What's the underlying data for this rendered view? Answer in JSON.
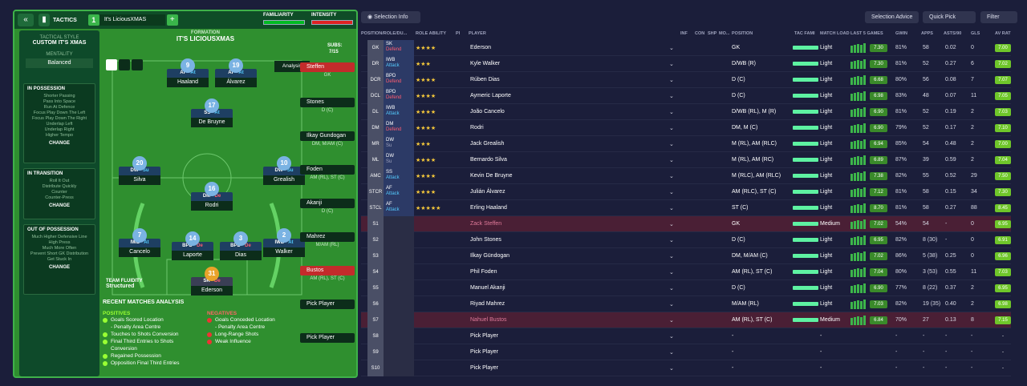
{
  "left": {
    "tactics_label": "TACTICS",
    "slot": "1",
    "tactic_name": "It's LiciousXMAS",
    "familiarity": "FAMILIARITY",
    "intensity": "INTENSITY",
    "tactical_style_h": "TACTICAL STYLE",
    "tactical_style": "CUSTOM IT'S XMAS",
    "mentality_h": "MENTALITY",
    "mentality": "Balanced",
    "in_possession_h": "IN POSSESSION",
    "in_possession": [
      "Shorter Passing",
      "Pass Into Space",
      "Run At Defence",
      "Focus Play Down The Left",
      "Focus Play Down The Right",
      "Underlap Left",
      "Underlap Right",
      "Higher Tempo"
    ],
    "in_transition_h": "IN TRANSITION",
    "in_transition": [
      "Roll It Out",
      "Distribute Quickly",
      "Counter",
      "Counter-Press"
    ],
    "out_possession_h": "OUT OF POSSESSION",
    "out_possession": [
      "Much Higher Defensive Line",
      "High Press",
      "Much More Often",
      "Prevent Short GK Distribution",
      "Get Stuck In"
    ],
    "change": "CHANGE",
    "formation_h": "FORMATION",
    "formation": "IT'S LICIOUSXMAS",
    "subs_h": "SUBS:",
    "subs_count": "7/15",
    "analysis": "Analysis",
    "team_fluidity_h": "TEAM FLUIDITY",
    "team_fluidity": "Structured",
    "players": [
      {
        "num": "9",
        "role": "AF",
        "duty": "At",
        "name": "Haaland"
      },
      {
        "num": "19",
        "role": "AF",
        "duty": "At",
        "name": "Álvarez"
      },
      {
        "num": "17",
        "role": "SS",
        "duty": "At",
        "name": "De Bruyne"
      },
      {
        "num": "20",
        "role": "DW",
        "duty": "Su",
        "name": "Silva"
      },
      {
        "num": "10",
        "role": "DW",
        "duty": "Su",
        "name": "Grealish"
      },
      {
        "num": "16",
        "role": "DM",
        "duty": "De",
        "name": "Rodri"
      },
      {
        "num": "7",
        "role": "IWB",
        "duty": "At",
        "name": "Cancelo"
      },
      {
        "num": "14",
        "role": "BPD",
        "duty": "De",
        "name": "Laporte"
      },
      {
        "num": "3",
        "role": "BPD",
        "duty": "De",
        "name": "Dias"
      },
      {
        "num": "2",
        "role": "IWB",
        "duty": "At",
        "name": "Walker"
      },
      {
        "num": "31",
        "role": "SK",
        "duty": "De",
        "name": "Ederson"
      }
    ],
    "subs": [
      {
        "name": "Steffen",
        "pos": "GK",
        "red": true
      },
      {
        "name": "Stones",
        "pos": "D (C)",
        "red": false
      },
      {
        "name": "Ilkay Gundogan",
        "pos": "DM, M/AM (C)",
        "red": false
      },
      {
        "name": "Foden",
        "pos": "AM (RL), ST (C)",
        "red": false
      },
      {
        "name": "Akanji",
        "pos": "D (C)",
        "red": false
      },
      {
        "name": "Mahrez",
        "pos": "M/AM (RL)",
        "red": false
      },
      {
        "name": "Bustos",
        "pos": "AM (RL), ST (C)",
        "red": true
      },
      {
        "name": "Pick Player",
        "pos": "",
        "red": false
      },
      {
        "name": "Pick Player",
        "pos": "",
        "red": false
      }
    ],
    "recent_h": "RECENT MATCHES ANALYSIS",
    "positives_h": "POSITIVES",
    "positives": [
      "Goals Scored Location",
      "- Penalty Area Centre",
      "Touches to Shots Conversion",
      "Final Third Entries to Shots Conversion",
      "Regained Possession",
      "Opposition Final Third Entries"
    ],
    "negatives_h": "NEGATIVES",
    "negatives": [
      "Goals Conceded Location",
      "- Penalty Area Centre",
      "Long-Range Shots",
      "Weak Influence"
    ]
  },
  "right": {
    "selection_info": "Selection Info",
    "selection_advice": "Selection Advice",
    "quick_pick": "Quick Pick",
    "filter": "Filter",
    "headers": [
      "POSITION/ROLE/DU...",
      "ROLE ABILITY",
      "PI",
      "PLAYER",
      "INF",
      "CON",
      "SHP",
      "MO...",
      "POSITION",
      "TAC FAMI",
      "MATCH LOAD",
      "LAST 5 GAMES",
      "GWIN",
      "APPS",
      "ASTS/90",
      "GLS",
      "AV RAT"
    ],
    "rows": [
      {
        "pos": "GK",
        "role": "SK",
        "duty": "Defend",
        "stars": "★★★★",
        "player": "Ederson",
        "position": "GK",
        "load": "Light",
        "rating": "7.30",
        "gwin": "81%",
        "apps": "58",
        "asts": "0.02",
        "gls": "0",
        "avr": "7.00"
      },
      {
        "pos": "DR",
        "role": "IWB",
        "duty": "Attack",
        "stars": "★★★",
        "player": "Kyle Walker",
        "position": "D/WB (R)",
        "load": "Light",
        "rating": "7.30",
        "gwin": "81%",
        "apps": "52",
        "asts": "0.27",
        "gls": "6",
        "avr": "7.02"
      },
      {
        "pos": "DCR",
        "role": "BPD",
        "duty": "Defend",
        "stars": "★★★★",
        "player": "Rúben Dias",
        "position": "D (C)",
        "load": "Light",
        "rating": "6.68",
        "gwin": "80%",
        "apps": "56",
        "asts": "0.08",
        "gls": "7",
        "avr": "7.07"
      },
      {
        "pos": "DCL",
        "role": "BPD",
        "duty": "Defend",
        "stars": "★★★★",
        "player": "Aymeric Laporte",
        "position": "D (C)",
        "load": "Light",
        "rating": "6.98",
        "gwin": "83%",
        "apps": "48",
        "asts": "0.07",
        "gls": "11",
        "avr": "7.05"
      },
      {
        "pos": "DL",
        "role": "IWB",
        "duty": "Attack",
        "stars": "★★★★",
        "player": "João Cancelo",
        "position": "D/WB (RL), M (R)",
        "load": "Light",
        "rating": "6.90",
        "gwin": "81%",
        "apps": "52",
        "asts": "0.19",
        "gls": "2",
        "avr": "7.03"
      },
      {
        "pos": "DM",
        "role": "DM",
        "duty": "Defend",
        "stars": "★★★★",
        "player": "Rodri",
        "position": "DM, M (C)",
        "load": "Light",
        "rating": "6.90",
        "gwin": "79%",
        "apps": "52",
        "asts": "0.17",
        "gls": "2",
        "avr": "7.10"
      },
      {
        "pos": "MR",
        "role": "DW",
        "duty": "Su",
        "stars": "★★★",
        "player": "Jack Grealish",
        "position": "M (RL), AM (RLC)",
        "load": "Light",
        "rating": "6.94",
        "gwin": "85%",
        "apps": "54",
        "asts": "0.48",
        "gls": "2",
        "avr": "7.00"
      },
      {
        "pos": "ML",
        "role": "DW",
        "duty": "Su",
        "stars": "★★★★",
        "player": "Bernardo Silva",
        "position": "M (RL), AM (RC)",
        "load": "Light",
        "rating": "6.89",
        "gwin": "87%",
        "apps": "39",
        "asts": "0.59",
        "gls": "2",
        "avr": "7.04"
      },
      {
        "pos": "AMC",
        "role": "SS",
        "duty": "Attack",
        "stars": "★★★★",
        "player": "Kevin De Bruyne",
        "position": "M (RLC), AM (RLC)",
        "load": "Light",
        "rating": "7.38",
        "gwin": "82%",
        "apps": "55",
        "asts": "0.52",
        "gls": "29",
        "avr": "7.50"
      },
      {
        "pos": "STCR",
        "role": "AF",
        "duty": "Attack",
        "stars": "★★★★",
        "player": "Julián Álvarez",
        "position": "AM (RLC), ST (C)",
        "load": "Light",
        "rating": "7.12",
        "gwin": "81%",
        "apps": "58",
        "asts": "0.15",
        "gls": "34",
        "avr": "7.30"
      },
      {
        "pos": "STCL",
        "role": "AF",
        "duty": "Attack",
        "stars": "★★★★★",
        "player": "Erling Haaland",
        "position": "ST (C)",
        "load": "Light",
        "rating": "8.70",
        "gwin": "81%",
        "apps": "58",
        "asts": "0.27",
        "gls": "88",
        "avr": "8.45"
      },
      {
        "pos": "S1",
        "role": "",
        "duty": "",
        "stars": "",
        "player": "Zack Steffen",
        "position": "GK",
        "load": "Medium",
        "rating": "7.02",
        "gwin": "54%",
        "apps": "54",
        "asts": "-",
        "gls": "0",
        "avr": "6.95"
      },
      {
        "pos": "S2",
        "role": "",
        "duty": "",
        "stars": "",
        "player": "John Stones",
        "position": "D (C)",
        "load": "Light",
        "rating": "6.95",
        "gwin": "82%",
        "apps": "8 (30)",
        "asts": "-",
        "gls": "0",
        "avr": "6.91"
      },
      {
        "pos": "S3",
        "role": "",
        "duty": "",
        "stars": "",
        "player": "Ilkay Gündogan",
        "position": "DM, M/AM (C)",
        "load": "Light",
        "rating": "7.02",
        "gwin": "86%",
        "apps": "5 (38)",
        "asts": "0.25",
        "gls": "0",
        "avr": "6.96"
      },
      {
        "pos": "S4",
        "role": "",
        "duty": "",
        "stars": "",
        "player": "Phil Foden",
        "position": "AM (RL), ST (C)",
        "load": "Light",
        "rating": "7.04",
        "gwin": "80%",
        "apps": "3 (53)",
        "asts": "0.55",
        "gls": "11",
        "avr": "7.03"
      },
      {
        "pos": "S5",
        "role": "",
        "duty": "",
        "stars": "",
        "player": "Manuel Akanji",
        "position": "D (C)",
        "load": "Light",
        "rating": "6.90",
        "gwin": "77%",
        "apps": "8 (22)",
        "asts": "0.37",
        "gls": "2",
        "avr": "6.95"
      },
      {
        "pos": "S6",
        "role": "",
        "duty": "",
        "stars": "",
        "player": "Riyad Mahrez",
        "position": "M/AM (RL)",
        "load": "Light",
        "rating": "7.03",
        "gwin": "82%",
        "apps": "19 (35)",
        "asts": "0.40",
        "gls": "2",
        "avr": "6.98"
      },
      {
        "pos": "S7",
        "role": "",
        "duty": "",
        "stars": "",
        "player": "Nahuel Bustos",
        "position": "AM (RL), ST (C)",
        "load": "Medium",
        "rating": "6.84",
        "gwin": "70%",
        "apps": "27",
        "asts": "0.13",
        "gls": "8",
        "avr": "7.15"
      },
      {
        "pos": "S8",
        "role": "",
        "duty": "",
        "stars": "",
        "player": "Pick Player",
        "position": "-",
        "load": "-",
        "rating": "",
        "gwin": "-",
        "apps": "-",
        "asts": "-",
        "gls": "-",
        "avr": "-"
      },
      {
        "pos": "S9",
        "role": "",
        "duty": "",
        "stars": "",
        "player": "Pick Player",
        "position": "-",
        "load": "-",
        "rating": "",
        "gwin": "-",
        "apps": "-",
        "asts": "-",
        "gls": "-",
        "avr": "-"
      },
      {
        "pos": "S10",
        "role": "",
        "duty": "",
        "stars": "",
        "player": "Pick Player",
        "position": "-",
        "load": "-",
        "rating": "",
        "gwin": "-",
        "apps": "-",
        "asts": "-",
        "gls": "-",
        "avr": "-"
      }
    ]
  }
}
